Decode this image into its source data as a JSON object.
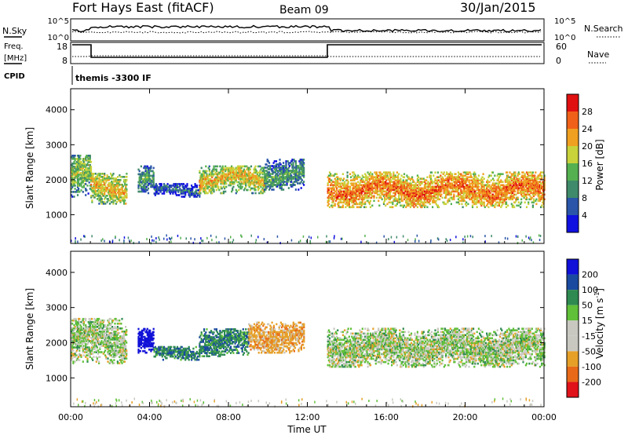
{
  "header": {
    "station": "Fort Hays East (fitACF)",
    "beam": "Beam 09",
    "date": "30/Jan/2015"
  },
  "status_panels": {
    "nsky_label": "N.Sky",
    "nsearch_label": "N.Search",
    "freq_label_line1": "Freq.",
    "freq_label_line2": "[MHz]",
    "nave_label": "Nave",
    "cpid_label": "CPID",
    "cpid_value": "themis -3300 IF",
    "noise_ticks": [
      "10^5",
      "10^0"
    ],
    "freq_ticks": [
      "18",
      "8"
    ],
    "nave_ticks": [
      "60",
      "0"
    ]
  },
  "colors": {
    "power_scale": [
      "#1010e0",
      "#2a55a8",
      "#3f8a6a",
      "#55b050",
      "#c8d23a",
      "#f0a020",
      "#f06018",
      "#e01010"
    ],
    "velocity_scale": [
      "#1010d8",
      "#1a4aa0",
      "#2e8a50",
      "#60c038",
      "#c8c8c0",
      "#c8c8c0",
      "#e6a028",
      "#e86a18",
      "#e0121a"
    ],
    "ground_scatter": "#c0c0b8"
  },
  "chart_data": [
    {
      "type": "heatmap",
      "title": "",
      "xlabel": "Time UT",
      "ylabel": "Slant Range [km]",
      "x_ticks": [
        "00:00",
        "04:00",
        "08:00",
        "12:00",
        "16:00",
        "20:00",
        "00:00"
      ],
      "xlim_hours": [
        0,
        24
      ],
      "y_ticks": [
        1000,
        2000,
        3000,
        4000
      ],
      "ylim_km": [
        180,
        4600
      ],
      "colorbar": {
        "label": "Power [dB]",
        "ticks": [
          4,
          8,
          12,
          16,
          20,
          24,
          28
        ],
        "range": [
          0,
          30
        ]
      },
      "approximate_echo_regions": [
        {
          "time_hours": [
            0.0,
            1.0
          ],
          "range_km": [
            1500,
            2700
          ],
          "power_db": 16
        },
        {
          "time_hours": [
            1.0,
            2.8
          ],
          "range_km": [
            1300,
            2200
          ],
          "power_db": 20
        },
        {
          "time_hours": [
            3.4,
            4.2
          ],
          "range_km": [
            1600,
            2400
          ],
          "power_db": 12
        },
        {
          "time_hours": [
            4.2,
            6.5
          ],
          "range_km": [
            1500,
            1900
          ],
          "power_db": 8
        },
        {
          "time_hours": [
            6.5,
            9.8
          ],
          "range_km": [
            1600,
            2400
          ],
          "power_db": 20
        },
        {
          "time_hours": [
            9.8,
            11.8
          ],
          "range_km": [
            1700,
            2600
          ],
          "power_db": 12
        },
        {
          "time_hours": [
            13.0,
            24.0
          ],
          "range_km": [
            1200,
            2200
          ],
          "power_db": 24
        }
      ]
    },
    {
      "type": "heatmap",
      "title": "",
      "xlabel": "Time UT",
      "ylabel": "Slant Range [km]",
      "x_ticks": [
        "00:00",
        "04:00",
        "08:00",
        "12:00",
        "16:00",
        "20:00",
        "00:00"
      ],
      "xlim_hours": [
        0,
        24
      ],
      "y_ticks": [
        1000,
        2000,
        3000,
        4000
      ],
      "ylim_km": [
        180,
        4600
      ],
      "colorbar": {
        "label": "Velocity [m s-1]",
        "label_main": "Velocity [m s",
        "label_exp": "-1",
        "label_end": "]",
        "ticks": [
          200,
          100,
          50,
          15,
          -15,
          -50,
          -100,
          -200
        ]
      },
      "approximate_echo_regions": [
        {
          "time_hours": [
            0.0,
            2.8
          ],
          "range_km": [
            1400,
            2700
          ],
          "velocity_ms": 0
        },
        {
          "time_hours": [
            3.4,
            4.2
          ],
          "range_km": [
            1700,
            2400
          ],
          "velocity_ms": 200
        },
        {
          "time_hours": [
            4.2,
            6.5
          ],
          "range_km": [
            1500,
            1900
          ],
          "velocity_ms": 60
        },
        {
          "time_hours": [
            6.5,
            9.0
          ],
          "range_km": [
            1600,
            2400
          ],
          "velocity_ms": 60
        },
        {
          "time_hours": [
            9.0,
            11.8
          ],
          "range_km": [
            1700,
            2600
          ],
          "velocity_ms": -50
        },
        {
          "time_hours": [
            13.0,
            24.0
          ],
          "range_km": [
            1300,
            2400
          ],
          "velocity_ms": 0
        }
      ]
    }
  ]
}
